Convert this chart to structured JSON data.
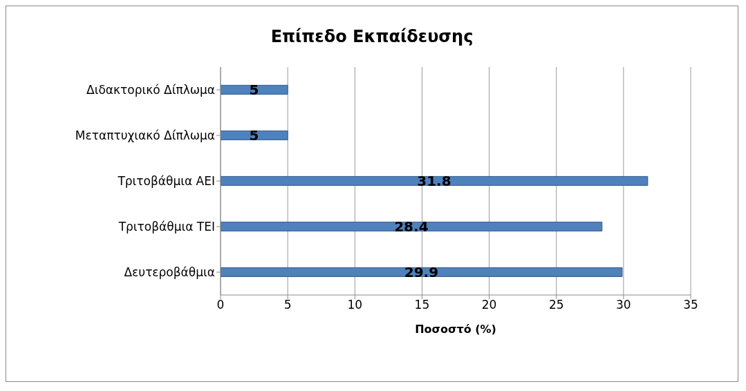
{
  "chart_data": {
    "type": "bar",
    "orientation": "horizontal",
    "title": "Επίπεδο Εκπαίδευσης",
    "xlabel": "Ποσοστό (%)",
    "categories": [
      "Διδακτορικό Δίπλωμα",
      "Μεταπτυχιακό Δίπλωμα",
      "Τριτοβάθμια ΑΕΙ",
      "Τριτοβάθμια ΤΕΙ",
      "Δευτεροβάθμια"
    ],
    "values": [
      5,
      5,
      31.8,
      28.4,
      29.9
    ],
    "color": "#4f81bd",
    "data_labels": true,
    "xlim": [
      0,
      35
    ],
    "xticks": [
      0,
      5,
      10,
      15,
      20,
      25,
      30,
      35
    ],
    "grid": "x"
  }
}
